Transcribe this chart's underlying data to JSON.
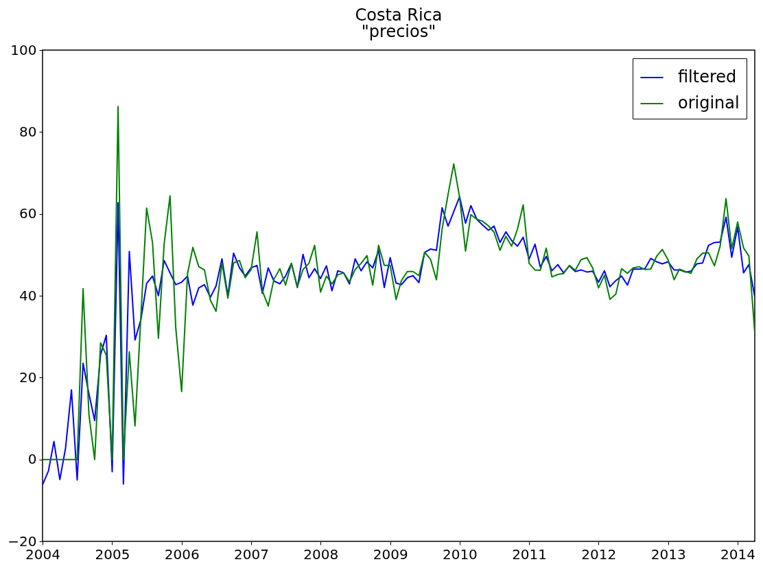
{
  "chart_data": {
    "type": "line",
    "title": "Costa Rica",
    "subtitle": "\"precios\"",
    "x": [
      "2004-01",
      "2004-02",
      "2004-03",
      "2004-04",
      "2004-05",
      "2004-06",
      "2004-07",
      "2004-08",
      "2004-09",
      "2004-10",
      "2004-11",
      "2004-12",
      "2005-01",
      "2005-02",
      "2005-03",
      "2005-04",
      "2005-05",
      "2005-06",
      "2005-07",
      "2005-08",
      "2005-09",
      "2005-10",
      "2005-11",
      "2005-12",
      "2006-01",
      "2006-02",
      "2006-03",
      "2006-04",
      "2006-05",
      "2006-06",
      "2006-07",
      "2006-08",
      "2006-09",
      "2006-10",
      "2006-11",
      "2006-12",
      "2007-01",
      "2007-02",
      "2007-03",
      "2007-04",
      "2007-05",
      "2007-06",
      "2007-07",
      "2007-08",
      "2007-09",
      "2007-10",
      "2007-11",
      "2007-12",
      "2008-01",
      "2008-02",
      "2008-03",
      "2008-04",
      "2008-05",
      "2008-06",
      "2008-07",
      "2008-08",
      "2008-09",
      "2008-10",
      "2008-11",
      "2008-12",
      "2009-01",
      "2009-02",
      "2009-03",
      "2009-04",
      "2009-05",
      "2009-06",
      "2009-07",
      "2009-08",
      "2009-09",
      "2009-10",
      "2009-11",
      "2009-12",
      "2010-01",
      "2010-02",
      "2010-03",
      "2010-04",
      "2010-05",
      "2010-06",
      "2010-07",
      "2010-08",
      "2010-09",
      "2010-10",
      "2010-11",
      "2010-12",
      "2011-01",
      "2011-02",
      "2011-03",
      "2011-04",
      "2011-05",
      "2011-06",
      "2011-07",
      "2011-08",
      "2011-09",
      "2011-10",
      "2011-11",
      "2011-12",
      "2012-01",
      "2012-02",
      "2012-03",
      "2012-04",
      "2012-05",
      "2012-06",
      "2012-07",
      "2012-08",
      "2012-09",
      "2012-10",
      "2012-11",
      "2012-12",
      "2013-01",
      "2013-02",
      "2013-03",
      "2013-04",
      "2013-05",
      "2013-06",
      "2013-07",
      "2013-08",
      "2013-09",
      "2013-10",
      "2013-11",
      "2013-12",
      "2014-01",
      "2014-02",
      "2014-03",
      "2014-04"
    ],
    "xlim": [
      "2004-01",
      "2014-04"
    ],
    "xticks": [
      "2004",
      "2005",
      "2006",
      "2007",
      "2008",
      "2009",
      "2010",
      "2011",
      "2012",
      "2013",
      "2014"
    ],
    "ylim": [
      -20,
      100
    ],
    "yticks": [
      -20,
      0,
      20,
      40,
      60,
      80,
      100
    ],
    "legend": "top right",
    "series": [
      {
        "name": "filtered",
        "color": "#0000ff",
        "values": [
          -6.2,
          -2.8,
          4.4,
          -4.9,
          2.8,
          17,
          -5,
          23.5,
          16,
          9.5,
          25.6,
          30.3,
          -3,
          62.7,
          -6,
          50.8,
          29.2,
          34.2,
          43,
          44.8,
          40,
          48.6,
          45.6,
          42.7,
          43.3,
          44.8,
          37.7,
          41.9,
          42.7,
          39.6,
          42.4,
          49,
          40,
          50.4,
          46.8,
          44.8,
          46.8,
          47.4,
          40.6,
          46.8,
          43.6,
          42.9,
          44.8,
          47.9,
          42,
          50.1,
          44.4,
          46.6,
          44.2,
          47.3,
          41.2,
          46.1,
          45.6,
          42.9,
          49,
          46.1,
          48.3,
          46.8,
          51.1,
          42,
          49.3,
          43.1,
          42.7,
          44.4,
          44.9,
          43.2,
          50.6,
          51.4,
          51.1,
          61.5,
          57,
          60.5,
          64.2,
          57.7,
          62,
          58.7,
          57.3,
          56,
          57,
          53,
          55.6,
          53.5,
          52.1,
          54.3,
          48.9,
          52.6,
          47,
          49.6,
          46.1,
          47.6,
          45.6,
          47.3,
          45.9,
          46.3,
          45.8,
          46,
          43.3,
          46.1,
          42.2,
          43.7,
          44.8,
          42.6,
          46.5,
          46.5,
          46.6,
          49.1,
          48.3,
          47.8,
          48.3,
          46.3,
          46.3,
          45.8,
          46,
          47.8,
          48,
          52.3,
          53,
          53.1,
          59.2,
          49.4,
          56.8,
          45.6,
          47.6,
          39.8
        ]
      },
      {
        "name": "original",
        "color": "#008000",
        "values": [
          0,
          0,
          0,
          0,
          0,
          0,
          0,
          41.7,
          10.9,
          0,
          28.5,
          25.5,
          0,
          86.2,
          0,
          26.3,
          8.2,
          35,
          61.4,
          53,
          29.6,
          52.6,
          64.4,
          32.2,
          16.6,
          45.4,
          51.8,
          47.1,
          46.3,
          38.9,
          36.2,
          48,
          39.4,
          48,
          48.6,
          44.4,
          46.4,
          55.6,
          41.2,
          37.5,
          44,
          46.6,
          42.6,
          47.9,
          42.2,
          46.4,
          47.9,
          52.3,
          40.9,
          44.8,
          42.9,
          45.1,
          45.6,
          43.4,
          46.4,
          47.9,
          49.8,
          42.6,
          52.3,
          47.4,
          47.4,
          39.1,
          43.7,
          45.9,
          45.9,
          44.9,
          50.6,
          48.9,
          43.9,
          56.3,
          64.7,
          72.2,
          64,
          50.9,
          59.8,
          58.7,
          58.2,
          57.1,
          55.5,
          51.1,
          54.5,
          52.1,
          56.3,
          62.2,
          47.9,
          46.3,
          46.2,
          51.6,
          44.6,
          45.2,
          45.4,
          47.4,
          46.2,
          48.8,
          49.3,
          46.8,
          41.9,
          45,
          39.1,
          40.4,
          46.6,
          45.5,
          46.8,
          47.1,
          46.4,
          46.5,
          49.6,
          51.3,
          48.7,
          43.9,
          46.5,
          45.9,
          45.5,
          49,
          50.4,
          50.5,
          47.3,
          52.1,
          63.7,
          51.5,
          58,
          51.7,
          49.7,
          31.1
        ]
      }
    ]
  }
}
